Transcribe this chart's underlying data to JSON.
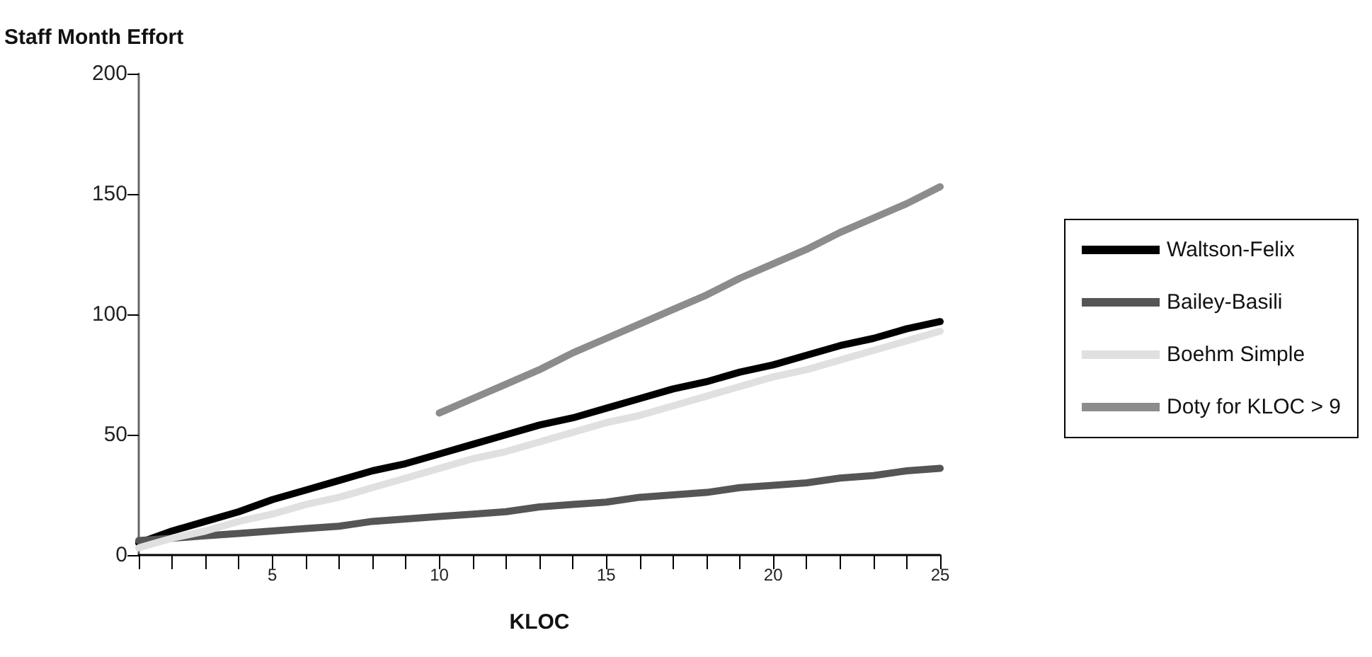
{
  "chart_data": {
    "type": "line",
    "ylabel": "Staff Month Effort",
    "xlabel": "KLOC",
    "x": [
      1,
      2,
      3,
      4,
      5,
      6,
      7,
      8,
      9,
      10,
      11,
      12,
      13,
      14,
      15,
      16,
      17,
      18,
      19,
      20,
      21,
      22,
      23,
      24,
      25
    ],
    "series": [
      {
        "name": "Waltson-Felix",
        "color": "#000000",
        "values": [
          5,
          10,
          14,
          18,
          23,
          27,
          31,
          35,
          38,
          42,
          46,
          50,
          54,
          57,
          61,
          65,
          69,
          72,
          76,
          79,
          83,
          87,
          90,
          94,
          97
        ]
      },
      {
        "name": "Bailey-Basili",
        "color": "#555555",
        "values": [
          6,
          7,
          8,
          9,
          10,
          11,
          12,
          14,
          15,
          16,
          17,
          18,
          20,
          21,
          22,
          24,
          25,
          26,
          28,
          29,
          30,
          32,
          33,
          35,
          36
        ]
      },
      {
        "name": "Boehm Simple",
        "color": "#e0e0e0",
        "values": [
          3,
          7,
          10,
          14,
          17,
          21,
          24,
          28,
          32,
          36,
          40,
          43,
          47,
          51,
          55,
          58,
          62,
          66,
          70,
          74,
          77,
          81,
          85,
          89,
          93
        ]
      },
      {
        "name": "Doty for KLOC > 9",
        "color": "#8c8c8c",
        "x": [
          10,
          11,
          12,
          13,
          14,
          15,
          16,
          17,
          18,
          19,
          20,
          21,
          22,
          23,
          24,
          25
        ],
        "values": [
          59,
          65,
          71,
          77,
          84,
          90,
          96,
          102,
          108,
          115,
          121,
          127,
          134,
          140,
          146,
          153
        ]
      }
    ],
    "xlim": [
      1,
      25
    ],
    "xticks": [
      {
        "value": 1,
        "label": null
      },
      {
        "value": 2,
        "label": null
      },
      {
        "value": 3,
        "label": null
      },
      {
        "value": 4,
        "label": null
      },
      5,
      {
        "value": 6,
        "label": null
      },
      {
        "value": 7,
        "label": null
      },
      {
        "value": 8,
        "label": null
      },
      {
        "value": 9,
        "label": null
      },
      10,
      {
        "value": 11,
        "label": null
      },
      {
        "value": 12,
        "label": null
      },
      {
        "value": 13,
        "label": null
      },
      {
        "value": 14,
        "label": null
      },
      15,
      {
        "value": 16,
        "label": null
      },
      {
        "value": 17,
        "label": null
      },
      {
        "value": 18,
        "label": null
      },
      {
        "value": 19,
        "label": null
      },
      20,
      {
        "value": 21,
        "label": null
      },
      {
        "value": 22,
        "label": null
      },
      {
        "value": 23,
        "label": null
      },
      {
        "value": 24,
        "label": null
      },
      25
    ],
    "ylim": [
      0,
      200
    ],
    "yticks": [
      0,
      50,
      100,
      150,
      200
    ],
    "grid": false,
    "legend": "right",
    "marker": "none",
    "line_style": "solid"
  }
}
